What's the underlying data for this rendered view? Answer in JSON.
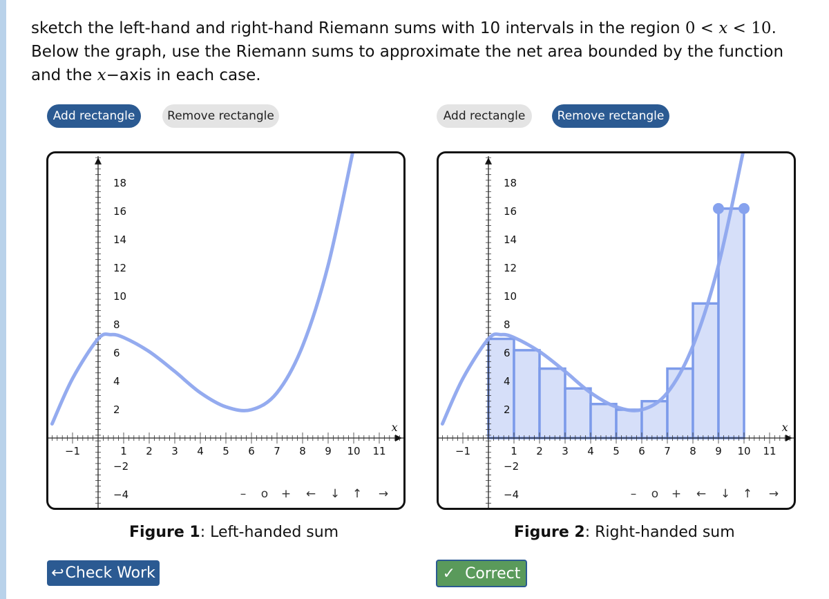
{
  "problem": {
    "text_1": "sketch the left-hand and right-hand Riemann sums with 10 intervals in the region ",
    "math_region_a": "0",
    "math_region_lt1": " < ",
    "math_region_x": "x",
    "math_region_lt2": " < ",
    "math_region_b": "10",
    "text_2": ". Below the graph, use the Riemann sums to approximate the net area bounded by the function and the ",
    "math_axis": "x",
    "text_3": "−axis in each case."
  },
  "panels": [
    {
      "add_label": "Add rectangle",
      "remove_label": "Remove rectangle",
      "caption_bold": "Figure 1",
      "caption_text": ": Left-handed sum",
      "x_axis_label": "x",
      "nav": [
        "–",
        "o",
        "+",
        "←",
        "↓",
        "↑",
        "→"
      ]
    },
    {
      "add_label": "Add rectangle",
      "remove_label": "Remove rectangle",
      "caption_bold": "Figure 2",
      "caption_text": ": Right-handed sum",
      "x_axis_label": "x",
      "nav": [
        "–",
        "o",
        "+",
        "←",
        "↓",
        "↑",
        "→"
      ]
    }
  ],
  "buttons": {
    "check_icon": "↩",
    "check_label": "Check Work",
    "correct_icon": "✓",
    "correct_label": "Correct"
  },
  "chart_data": [
    {
      "type": "line",
      "title": "Left-handed sum",
      "x_ticks": [
        "−1",
        "1",
        "2",
        "3",
        "4",
        "5",
        "6",
        "7",
        "8",
        "9",
        "10",
        "11"
      ],
      "y_ticks": [
        "18",
        "16",
        "14",
        "12",
        "10",
        "8",
        "6",
        "4",
        "2",
        "−2",
        "−4"
      ],
      "xlim": [
        -1.8,
        11.8
      ],
      "ylim": [
        -5,
        20
      ],
      "function_points": [
        [
          -1.8,
          1.0
        ],
        [
          -1,
          4.2
        ],
        [
          0,
          7.0
        ],
        [
          0.5,
          7.3
        ],
        [
          1,
          7.1
        ],
        [
          2,
          6.1
        ],
        [
          3,
          4.7
        ],
        [
          4,
          3.2
        ],
        [
          5,
          2.2
        ],
        [
          6,
          2.0
        ],
        [
          7,
          3.2
        ],
        [
          8,
          6.5
        ],
        [
          9,
          12.2
        ],
        [
          10,
          20.5
        ]
      ],
      "rectangles": [],
      "colors": {
        "curve": "#8ea6ee"
      }
    },
    {
      "type": "bar",
      "title": "Right-handed sum",
      "x_ticks": [
        "−1",
        "1",
        "2",
        "3",
        "4",
        "5",
        "6",
        "7",
        "8",
        "9",
        "10",
        "11"
      ],
      "y_ticks": [
        "18",
        "16",
        "14",
        "12",
        "10",
        "8",
        "6",
        "4",
        "2",
        "−2",
        "−4"
      ],
      "xlim": [
        -1.8,
        11.8
      ],
      "ylim": [
        -5,
        20
      ],
      "function_points": [
        [
          -1.8,
          1.0
        ],
        [
          -1,
          4.2
        ],
        [
          0,
          7.0
        ],
        [
          0.5,
          7.3
        ],
        [
          1,
          7.1
        ],
        [
          2,
          6.1
        ],
        [
          3,
          4.7
        ],
        [
          4,
          3.2
        ],
        [
          5,
          2.2
        ],
        [
          6,
          2.0
        ],
        [
          7,
          3.2
        ],
        [
          8,
          6.5
        ],
        [
          9,
          12.2
        ],
        [
          10,
          20.5
        ]
      ],
      "rectangles": [
        {
          "x0": 0,
          "x1": 1,
          "height": 7.0
        },
        {
          "x0": 1,
          "x1": 2,
          "height": 6.2
        },
        {
          "x0": 2,
          "x1": 3,
          "height": 4.9
        },
        {
          "x0": 3,
          "x1": 4,
          "height": 3.5
        },
        {
          "x0": 4,
          "x1": 5,
          "height": 2.4
        },
        {
          "x0": 5,
          "x1": 6,
          "height": 2.0
        },
        {
          "x0": 6,
          "x1": 7,
          "height": 2.6
        },
        {
          "x0": 7,
          "x1": 8,
          "height": 4.9
        },
        {
          "x0": 8,
          "x1": 9,
          "height": 9.5
        },
        {
          "x0": 9,
          "x1": 10,
          "height": 16.2
        }
      ],
      "colors": {
        "curve": "#8ea6ee",
        "rect_fill": "#d2dcf8",
        "rect_stroke": "#7d9bea"
      }
    }
  ]
}
